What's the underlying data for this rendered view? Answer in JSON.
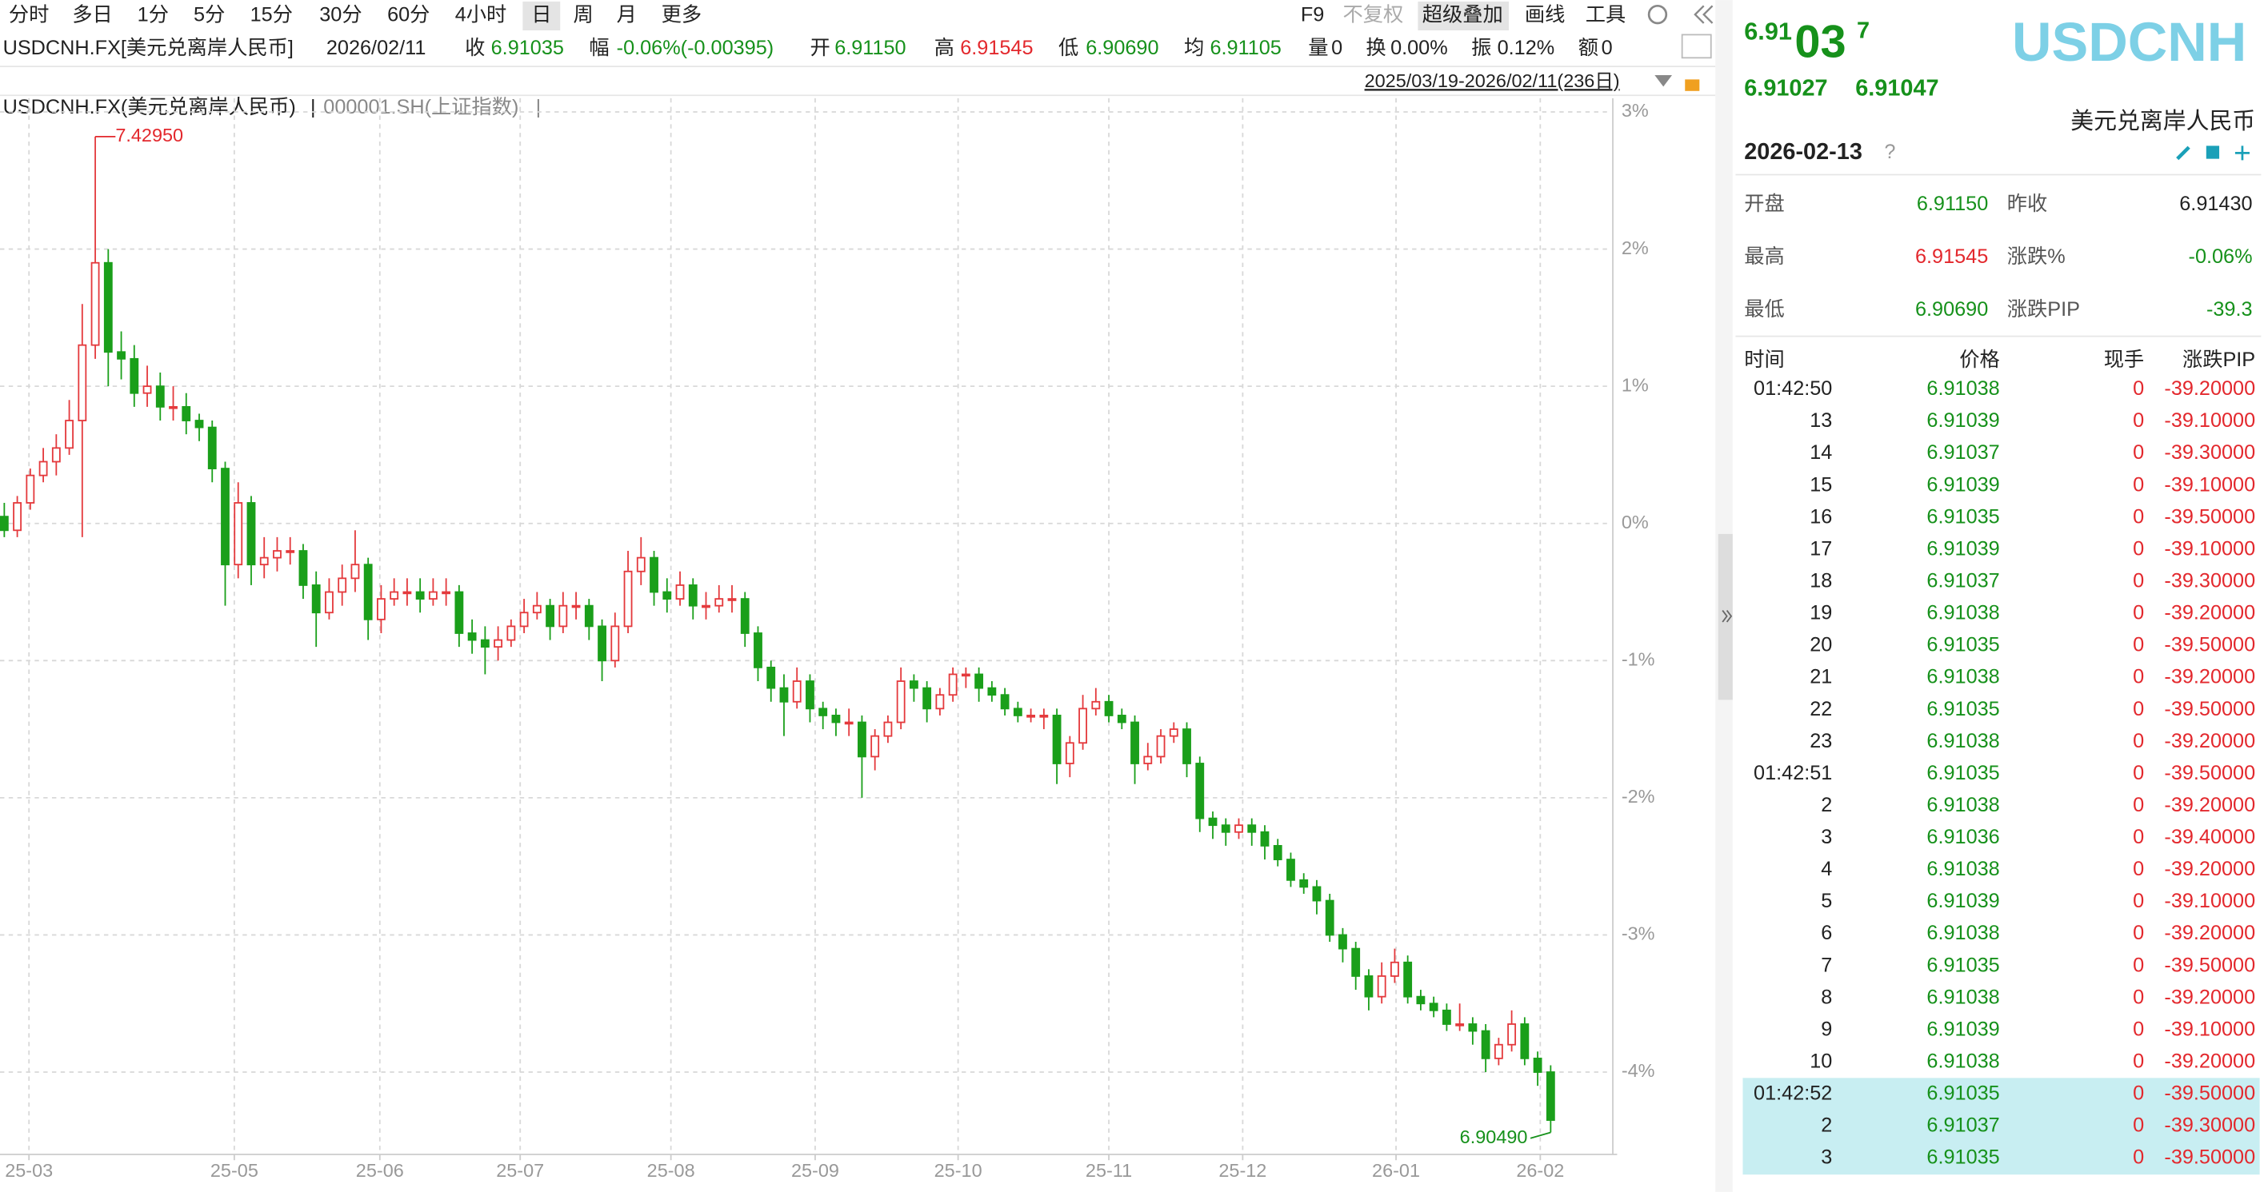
{
  "toolbar": {
    "left": [
      "分时",
      "多日",
      "1分",
      "5分",
      "15分",
      "30分",
      "60分",
      "4小时",
      "日",
      "周",
      "月",
      "更多"
    ],
    "right": [
      "F9",
      "不复权",
      "超级叠加",
      "画线",
      "工具"
    ]
  },
  "info_bar": {
    "symbol": "USDCNH.FX[美元兑离岸人民币]",
    "date": "2026/02/11",
    "range": "2025/03/19-2026/02/11(236日)",
    "fields": [
      {
        "label": "收",
        "value": "6.91035",
        "color": "#16911b"
      },
      {
        "label": "幅",
        "value": "-0.06%(-0.00395)",
        "color": "#16911b"
      },
      {
        "label": "开",
        "value": "6.91150",
        "color": "#16911b"
      },
      {
        "label": "高",
        "value": "6.91545",
        "color": "#e3282d"
      },
      {
        "label": "低",
        "value": "6.90690",
        "color": "#16911b"
      },
      {
        "label": "均",
        "value": "6.91105",
        "color": "#16911b"
      },
      {
        "label": "量",
        "value": "0",
        "color": "#222"
      },
      {
        "label": "换",
        "value": "0.00%",
        "color": "#222"
      },
      {
        "label": "振",
        "value": "0.12%",
        "color": "#222"
      },
      {
        "label": "额",
        "value": "0",
        "color": "#222"
      }
    ]
  },
  "chart_data": {
    "type": "candlestick",
    "legend": [
      "USDCNH.FX(美元兑离岸人民币)",
      "000001.SH(上证指数)"
    ],
    "separator": "|",
    "up_color": "#e4393c",
    "down_color": "#1a9f1a",
    "grid": true,
    "annotations": {
      "high": "7.42950",
      "low": "6.90490"
    },
    "xlim": [
      -0.33,
      123.56
    ],
    "ylim": [
      -4.6,
      3.1
    ],
    "xticks": [
      {
        "value": 1.9,
        "label": "25-03"
      },
      {
        "value": 17.7,
        "label": "25-05"
      },
      {
        "value": 28.9,
        "label": "25-06"
      },
      {
        "value": 39.7,
        "label": "25-07"
      },
      {
        "value": 51.3,
        "label": "25-08"
      },
      {
        "value": 62.4,
        "label": "25-09"
      },
      {
        "value": 73.4,
        "label": "25-10"
      },
      {
        "value": 85,
        "label": "25-11"
      },
      {
        "value": 95.3,
        "label": "25-12"
      },
      {
        "value": 107.1,
        "label": "26-01"
      },
      {
        "value": 118.2,
        "label": "26-02"
      }
    ],
    "yticks": [
      {
        "value": 3,
        "label": "3%"
      },
      {
        "value": 2,
        "label": "2%"
      },
      {
        "value": 1,
        "label": "1%"
      },
      {
        "value": 0,
        "label": "0%"
      },
      {
        "value": -1,
        "label": "-1%"
      },
      {
        "value": -2,
        "label": "-2%"
      },
      {
        "value": -3,
        "label": "-3%"
      },
      {
        "value": -4,
        "label": "-4%"
      }
    ],
    "candles": [
      [
        0.05,
        0.15,
        -0.1,
        -0.05
      ],
      [
        -0.05,
        0.2,
        -0.1,
        0.15
      ],
      [
        0.15,
        0.4,
        0.1,
        0.35
      ],
      [
        0.35,
        0.55,
        0.3,
        0.45
      ],
      [
        0.45,
        0.65,
        0.35,
        0.55
      ],
      [
        0.55,
        0.9,
        0.5,
        0.75
      ],
      [
        0.75,
        1.6,
        -0.1,
        1.3
      ],
      [
        1.3,
        2.82,
        1.2,
        1.9
      ],
      [
        1.9,
        2.0,
        1.0,
        1.25
      ],
      [
        1.25,
        1.4,
        1.05,
        1.2
      ],
      [
        1.2,
        1.3,
        0.85,
        0.95
      ],
      [
        0.95,
        1.15,
        0.85,
        1.0
      ],
      [
        1.0,
        1.1,
        0.75,
        0.85
      ],
      [
        0.85,
        1.0,
        0.75,
        0.85
      ],
      [
        0.85,
        0.95,
        0.65,
        0.75
      ],
      [
        0.75,
        0.8,
        0.6,
        0.7
      ],
      [
        0.7,
        0.75,
        0.3,
        0.4
      ],
      [
        0.4,
        0.45,
        -0.6,
        -0.3
      ],
      [
        -0.3,
        0.3,
        -0.4,
        0.15
      ],
      [
        0.15,
        0.2,
        -0.45,
        -0.3
      ],
      [
        -0.3,
        -0.1,
        -0.4,
        -0.25
      ],
      [
        -0.25,
        -0.1,
        -0.35,
        -0.2
      ],
      [
        -0.2,
        -0.1,
        -0.3,
        -0.2
      ],
      [
        -0.2,
        -0.15,
        -0.55,
        -0.45
      ],
      [
        -0.45,
        -0.35,
        -0.9,
        -0.65
      ],
      [
        -0.65,
        -0.4,
        -0.7,
        -0.5
      ],
      [
        -0.5,
        -0.3,
        -0.6,
        -0.4
      ],
      [
        -0.4,
        -0.05,
        -0.5,
        -0.3
      ],
      [
        -0.3,
        -0.25,
        -0.85,
        -0.7
      ],
      [
        -0.7,
        -0.45,
        -0.8,
        -0.55
      ],
      [
        -0.55,
        -0.4,
        -0.6,
        -0.5
      ],
      [
        -0.5,
        -0.4,
        -0.6,
        -0.5
      ],
      [
        -0.5,
        -0.4,
        -0.65,
        -0.55
      ],
      [
        -0.55,
        -0.4,
        -0.6,
        -0.5
      ],
      [
        -0.5,
        -0.4,
        -0.6,
        -0.5
      ],
      [
        -0.5,
        -0.45,
        -0.9,
        -0.8
      ],
      [
        -0.8,
        -0.7,
        -0.95,
        -0.85
      ],
      [
        -0.85,
        -0.75,
        -1.1,
        -0.9
      ],
      [
        -0.9,
        -0.75,
        -1.0,
        -0.85
      ],
      [
        -0.85,
        -0.7,
        -0.9,
        -0.75
      ],
      [
        -0.75,
        -0.55,
        -0.8,
        -0.65
      ],
      [
        -0.65,
        -0.5,
        -0.7,
        -0.6
      ],
      [
        -0.6,
        -0.55,
        -0.85,
        -0.75
      ],
      [
        -0.75,
        -0.5,
        -0.8,
        -0.6
      ],
      [
        -0.6,
        -0.5,
        -0.7,
        -0.6
      ],
      [
        -0.6,
        -0.55,
        -0.85,
        -0.75
      ],
      [
        -0.75,
        -0.7,
        -1.15,
        -1.0
      ],
      [
        -1.0,
        -0.65,
        -1.05,
        -0.75
      ],
      [
        -0.75,
        -0.2,
        -0.8,
        -0.35
      ],
      [
        -0.35,
        -0.1,
        -0.45,
        -0.25
      ],
      [
        -0.25,
        -0.2,
        -0.6,
        -0.5
      ],
      [
        -0.5,
        -0.4,
        -0.65,
        -0.55
      ],
      [
        -0.55,
        -0.35,
        -0.6,
        -0.45
      ],
      [
        -0.45,
        -0.4,
        -0.7,
        -0.6
      ],
      [
        -0.6,
        -0.5,
        -0.7,
        -0.6
      ],
      [
        -0.6,
        -0.45,
        -0.65,
        -0.55
      ],
      [
        -0.55,
        -0.45,
        -0.65,
        -0.55
      ],
      [
        -0.55,
        -0.5,
        -0.9,
        -0.8
      ],
      [
        -0.8,
        -0.75,
        -1.15,
        -1.05
      ],
      [
        -1.05,
        -1.0,
        -1.3,
        -1.2
      ],
      [
        -1.2,
        -1.1,
        -1.55,
        -1.3
      ],
      [
        -1.3,
        -1.05,
        -1.35,
        -1.15
      ],
      [
        -1.15,
        -1.1,
        -1.45,
        -1.35
      ],
      [
        -1.35,
        -1.3,
        -1.5,
        -1.4
      ],
      [
        -1.4,
        -1.35,
        -1.55,
        -1.45
      ],
      [
        -1.45,
        -1.35,
        -1.55,
        -1.45
      ],
      [
        -1.45,
        -1.4,
        -2.0,
        -1.7
      ],
      [
        -1.7,
        -1.5,
        -1.8,
        -1.55
      ],
      [
        -1.55,
        -1.4,
        -1.6,
        -1.45
      ],
      [
        -1.45,
        -1.05,
        -1.5,
        -1.15
      ],
      [
        -1.15,
        -1.1,
        -1.3,
        -1.2
      ],
      [
        -1.2,
        -1.15,
        -1.45,
        -1.35
      ],
      [
        -1.35,
        -1.2,
        -1.4,
        -1.25
      ],
      [
        -1.25,
        -1.05,
        -1.3,
        -1.1
      ],
      [
        -1.1,
        -1.05,
        -1.2,
        -1.1
      ],
      [
        -1.1,
        -1.05,
        -1.3,
        -1.2
      ],
      [
        -1.2,
        -1.15,
        -1.3,
        -1.25
      ],
      [
        -1.25,
        -1.2,
        -1.4,
        -1.35
      ],
      [
        -1.35,
        -1.3,
        -1.45,
        -1.4
      ],
      [
        -1.4,
        -1.35,
        -1.45,
        -1.4
      ],
      [
        -1.4,
        -1.35,
        -1.5,
        -1.4
      ],
      [
        -1.4,
        -1.35,
        -1.9,
        -1.75
      ],
      [
        -1.75,
        -1.55,
        -1.85,
        -1.6
      ],
      [
        -1.6,
        -1.25,
        -1.65,
        -1.35
      ],
      [
        -1.35,
        -1.2,
        -1.4,
        -1.3
      ],
      [
        -1.3,
        -1.25,
        -1.45,
        -1.4
      ],
      [
        -1.4,
        -1.35,
        -1.5,
        -1.45
      ],
      [
        -1.45,
        -1.4,
        -1.9,
        -1.75
      ],
      [
        -1.75,
        -1.6,
        -1.8,
        -1.7
      ],
      [
        -1.7,
        -1.5,
        -1.75,
        -1.55
      ],
      [
        -1.55,
        -1.45,
        -1.6,
        -1.5
      ],
      [
        -1.5,
        -1.45,
        -1.85,
        -1.75
      ],
      [
        -1.75,
        -1.7,
        -2.25,
        -2.15
      ],
      [
        -2.15,
        -2.1,
        -2.3,
        -2.2
      ],
      [
        -2.2,
        -2.15,
        -2.35,
        -2.25
      ],
      [
        -2.25,
        -2.15,
        -2.3,
        -2.2
      ],
      [
        -2.2,
        -2.15,
        -2.35,
        -2.25
      ],
      [
        -2.25,
        -2.2,
        -2.45,
        -2.35
      ],
      [
        -2.35,
        -2.3,
        -2.5,
        -2.45
      ],
      [
        -2.45,
        -2.4,
        -2.65,
        -2.6
      ],
      [
        -2.6,
        -2.55,
        -2.7,
        -2.65
      ],
      [
        -2.65,
        -2.6,
        -2.85,
        -2.75
      ],
      [
        -2.75,
        -2.7,
        -3.05,
        -3.0
      ],
      [
        -3.0,
        -2.95,
        -3.2,
        -3.1
      ],
      [
        -3.1,
        -3.05,
        -3.4,
        -3.3
      ],
      [
        -3.3,
        -3.25,
        -3.55,
        -3.45
      ],
      [
        -3.45,
        -3.2,
        -3.5,
        -3.3
      ],
      [
        -3.3,
        -3.1,
        -3.35,
        -3.2
      ],
      [
        -3.2,
        -3.15,
        -3.5,
        -3.45
      ],
      [
        -3.45,
        -3.4,
        -3.55,
        -3.5
      ],
      [
        -3.5,
        -3.45,
        -3.6,
        -3.55
      ],
      [
        -3.55,
        -3.5,
        -3.7,
        -3.65
      ],
      [
        -3.65,
        -3.5,
        -3.7,
        -3.65
      ],
      [
        -3.65,
        -3.6,
        -3.8,
        -3.7
      ],
      [
        -3.7,
        -3.65,
        -4.0,
        -3.9
      ],
      [
        -3.9,
        -3.75,
        -3.95,
        -3.8
      ],
      [
        -3.8,
        -3.55,
        -3.85,
        -3.65
      ],
      [
        -3.65,
        -3.6,
        -3.95,
        -3.9
      ],
      [
        -3.9,
        -3.85,
        -4.1,
        -4.0
      ],
      [
        -4.0,
        -3.95,
        -4.44,
        -4.35
      ]
    ]
  },
  "quote_panel": {
    "price_head": "6.91",
    "price_mid": "03",
    "price_tail": "7",
    "bid": "6.91027",
    "ask": "6.91047",
    "symbol": "USDCNH",
    "name": "美元兑离岸人民币",
    "date": "2026-02-13",
    "help": "?",
    "stats": [
      {
        "label": "开盘",
        "value": "6.91150",
        "color": "#16911b"
      },
      {
        "label": "昨收",
        "value": "6.91430",
        "color": "#222"
      },
      {
        "label": "最高",
        "value": "6.91545",
        "color": "#e3282d"
      },
      {
        "label": "涨跌%",
        "value": "-0.06%",
        "color": "#16911b"
      },
      {
        "label": "最低",
        "value": "6.90690",
        "color": "#16911b"
      },
      {
        "label": "涨跌PIP",
        "value": "-39.3",
        "color": "#16911b"
      }
    ],
    "header": [
      "时间",
      "价格",
      "现手",
      "涨跌PIP"
    ],
    "rows": [
      [
        "01:42:50",
        "6.91038",
        "0",
        "-39.20000"
      ],
      [
        "13",
        "6.91039",
        "0",
        "-39.10000"
      ],
      [
        "14",
        "6.91037",
        "0",
        "-39.30000"
      ],
      [
        "15",
        "6.91039",
        "0",
        "-39.10000"
      ],
      [
        "16",
        "6.91035",
        "0",
        "-39.50000"
      ],
      [
        "17",
        "6.91039",
        "0",
        "-39.10000"
      ],
      [
        "18",
        "6.91037",
        "0",
        "-39.30000"
      ],
      [
        "19",
        "6.91038",
        "0",
        "-39.20000"
      ],
      [
        "20",
        "6.91035",
        "0",
        "-39.50000"
      ],
      [
        "21",
        "6.91038",
        "0",
        "-39.20000"
      ],
      [
        "22",
        "6.91035",
        "0",
        "-39.50000"
      ],
      [
        "23",
        "6.91038",
        "0",
        "-39.20000"
      ],
      [
        "01:42:51",
        "6.91035",
        "0",
        "-39.50000"
      ],
      [
        "2",
        "6.91038",
        "0",
        "-39.20000"
      ],
      [
        "3",
        "6.91036",
        "0",
        "-39.40000"
      ],
      [
        "4",
        "6.91038",
        "0",
        "-39.20000"
      ],
      [
        "5",
        "6.91039",
        "0",
        "-39.10000"
      ],
      [
        "6",
        "6.91038",
        "0",
        "-39.20000"
      ],
      [
        "7",
        "6.91035",
        "0",
        "-39.50000"
      ],
      [
        "8",
        "6.91038",
        "0",
        "-39.20000"
      ],
      [
        "9",
        "6.91039",
        "0",
        "-39.10000"
      ],
      [
        "10",
        "6.91038",
        "0",
        "-39.20000"
      ],
      [
        "01:42:52",
        "6.91035",
        "0",
        "-39.50000"
      ],
      [
        "2",
        "6.91037",
        "0",
        "-39.30000"
      ],
      [
        "3",
        "6.91035",
        "0",
        "-39.50000"
      ]
    ]
  }
}
